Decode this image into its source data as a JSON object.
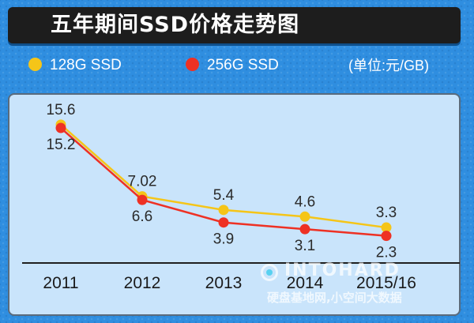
{
  "title": "五年期间SSD价格走势图",
  "unit_label": "(单位:元/GB)",
  "colors": {
    "series_128": "#f5c518",
    "series_256": "#ee3124",
    "background": "#2f8ee0",
    "panel": "#c9e4fb"
  },
  "watermark": {
    "brand": "INTOHARD",
    "subtitle": "硬盘基地网,小空间大数据"
  },
  "chart_data": {
    "type": "line",
    "title": "五年期间SSD价格走势图",
    "xlabel": "",
    "ylabel": "",
    "unit": "元/GB",
    "x": [
      "2011",
      "2012",
      "2013",
      "2014",
      "2015/16"
    ],
    "ylim": [
      0,
      17
    ],
    "grid": false,
    "legend_position": "top",
    "series": [
      {
        "name": "128G SSD",
        "values": [
          15.6,
          7.02,
          5.4,
          4.6,
          3.3
        ],
        "labels": [
          "15.6",
          "7.02",
          "5.4",
          "4.6",
          "3.3"
        ],
        "color": "#f5c518",
        "label_pos": "above"
      },
      {
        "name": "256G SSD",
        "values": [
          15.2,
          6.6,
          3.9,
          3.1,
          2.3
        ],
        "labels": [
          "15.2",
          "6.6",
          "3.9",
          "3.1",
          "2.3"
        ],
        "color": "#ee3124",
        "label_pos": "below"
      }
    ]
  }
}
